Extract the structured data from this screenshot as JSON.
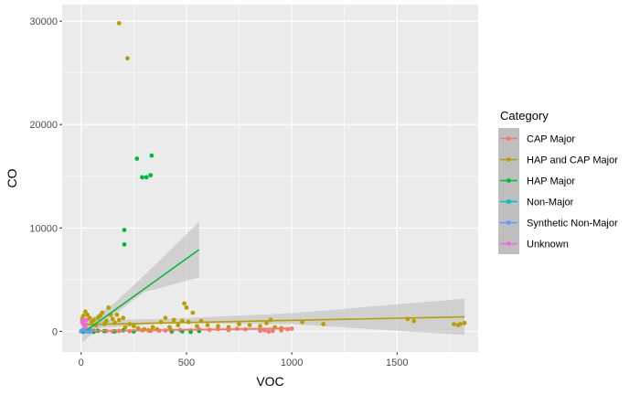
{
  "chart_data": {
    "type": "scatter",
    "xlabel": "VOC",
    "ylabel": "CO",
    "xlim": [
      -90,
      1885
    ],
    "ylim": [
      -2000,
      31600
    ],
    "xticks": [
      0,
      500,
      1000,
      1500
    ],
    "yticks": [
      0,
      10000,
      20000,
      30000
    ],
    "x_tick_labels": [
      "0",
      "500",
      "1000",
      "1500"
    ],
    "y_tick_labels": [
      "0",
      "10000",
      "20000",
      "30000"
    ],
    "grid": true,
    "legend": {
      "title": "Category",
      "position": "right",
      "entries": [
        "CAP Major",
        "HAP and CAP Major",
        "HAP Major",
        "Non-Major",
        "Synthetic Non-Major",
        "Unknown"
      ]
    },
    "colors": {
      "CAP Major": "#F8766D",
      "HAP and CAP Major": "#B79F00",
      "HAP Major": "#00BA38",
      "Non-Major": "#00BFC4",
      "Synthetic Non-Major": "#619CFF",
      "Unknown": "#F564E3",
      "panel_bg": "#EBEBEB",
      "grid": "#FFFFFF",
      "band": "#BEBEBE"
    },
    "series": [
      {
        "name": "CAP Major",
        "points": [
          [
            60,
            50
          ],
          [
            120,
            30
          ],
          [
            150,
            -20
          ],
          [
            180,
            40
          ],
          [
            230,
            20
          ],
          [
            290,
            100
          ],
          [
            330,
            40
          ],
          [
            370,
            60
          ],
          [
            400,
            80
          ],
          [
            430,
            -50
          ],
          [
            470,
            120
          ],
          [
            520,
            60
          ],
          [
            560,
            200
          ],
          [
            610,
            140
          ],
          [
            650,
            200
          ],
          [
            700,
            120
          ],
          [
            740,
            250
          ],
          [
            780,
            200
          ],
          [
            850,
            60
          ],
          [
            870,
            120
          ],
          [
            890,
            -20
          ],
          [
            910,
            40
          ],
          [
            950,
            100
          ],
          [
            980,
            200
          ],
          [
            1000,
            260
          ]
        ],
        "fit": [
          [
            40,
            30
          ],
          [
            1000,
            280
          ]
        ],
        "band": [
          [
            40,
            -90,
            150
          ],
          [
            1000,
            130,
            430
          ]
        ]
      },
      {
        "name": "HAP and CAP Major",
        "points": [
          [
            180,
            29800
          ],
          [
            220,
            26400
          ],
          [
            5,
            1200
          ],
          [
            10,
            1500
          ],
          [
            20,
            1900
          ],
          [
            30,
            1600
          ],
          [
            40,
            1300
          ],
          [
            50,
            900
          ],
          [
            60,
            1100
          ],
          [
            70,
            600
          ],
          [
            80,
            1300
          ],
          [
            90,
            1500
          ],
          [
            100,
            1800
          ],
          [
            110,
            700
          ],
          [
            120,
            1000
          ],
          [
            130,
            2300
          ],
          [
            140,
            1600
          ],
          [
            150,
            1200
          ],
          [
            160,
            800
          ],
          [
            170,
            1600
          ],
          [
            180,
            1100
          ],
          [
            200,
            1300
          ],
          [
            210,
            400
          ],
          [
            230,
            700
          ],
          [
            250,
            500
          ],
          [
            270,
            300
          ],
          [
            300,
            200
          ],
          [
            320,
            100
          ],
          [
            340,
            400
          ],
          [
            360,
            200
          ],
          [
            380,
            900
          ],
          [
            400,
            1300
          ],
          [
            420,
            400
          ],
          [
            440,
            1100
          ],
          [
            460,
            600
          ],
          [
            480,
            1000
          ],
          [
            490,
            2700
          ],
          [
            500,
            2300
          ],
          [
            510,
            900
          ],
          [
            530,
            1800
          ],
          [
            550,
            500
          ],
          [
            570,
            1000
          ],
          [
            600,
            600
          ],
          [
            650,
            500
          ],
          [
            700,
            400
          ],
          [
            750,
            700
          ],
          [
            800,
            600
          ],
          [
            850,
            500
          ],
          [
            880,
            800
          ],
          [
            900,
            1100
          ],
          [
            920,
            400
          ],
          [
            950,
            300
          ],
          [
            1050,
            900
          ],
          [
            1150,
            700
          ],
          [
            1550,
            1200
          ],
          [
            1580,
            1000
          ],
          [
            1770,
            700
          ],
          [
            1790,
            600
          ],
          [
            1800,
            700
          ],
          [
            1820,
            800
          ]
        ],
        "fit": [
          [
            5,
            650
          ],
          [
            1820,
            1400
          ]
        ],
        "band": [
          [
            5,
            200,
            1100
          ],
          [
            400,
            780,
            1200
          ],
          [
            1000,
            700,
            1750
          ],
          [
            1820,
            -350,
            3150
          ]
        ]
      },
      {
        "name": "HAP Major",
        "points": [
          [
            265,
            16700
          ],
          [
            335,
            17000
          ],
          [
            290,
            14900
          ],
          [
            310,
            14900
          ],
          [
            330,
            15100
          ],
          [
            205,
            9800
          ],
          [
            205,
            8400
          ],
          [
            10,
            100
          ],
          [
            30,
            0
          ],
          [
            60,
            -50
          ],
          [
            80,
            50
          ],
          [
            110,
            20
          ],
          [
            160,
            0
          ],
          [
            200,
            100
          ],
          [
            250,
            -20
          ],
          [
            430,
            50
          ],
          [
            480,
            0
          ],
          [
            520,
            -60
          ],
          [
            560,
            30
          ]
        ],
        "fit": [
          [
            5,
            -200
          ],
          [
            560,
            7900
          ]
        ],
        "band": [
          [
            5,
            -1100,
            700
          ],
          [
            150,
            1500,
            2600
          ],
          [
            300,
            3800,
            5400
          ],
          [
            560,
            5200,
            10600
          ]
        ]
      },
      {
        "name": "Non-Major",
        "points": [
          [
            5,
            40
          ],
          [
            10,
            80
          ],
          [
            15,
            0
          ],
          [
            20,
            120
          ],
          [
            30,
            60
          ],
          [
            40,
            -20
          ]
        ],
        "fit": [
          [
            0,
            30
          ],
          [
            45,
            90
          ]
        ],
        "band": [
          [
            0,
            -250,
            300
          ],
          [
            45,
            -150,
            350
          ]
        ]
      },
      {
        "name": "Synthetic Non-Major",
        "points": [
          [
            0,
            0
          ],
          [
            5,
            80
          ],
          [
            10,
            -40
          ],
          [
            20,
            40
          ],
          [
            30,
            0
          ],
          [
            50,
            60
          ]
        ],
        "fit": [
          [
            0,
            20
          ],
          [
            55,
            60
          ]
        ],
        "band": [
          [
            0,
            -200,
            240
          ],
          [
            55,
            -150,
            280
          ]
        ]
      },
      {
        "name": "Unknown",
        "points": [
          [
            5,
            900
          ],
          [
            10,
            1050
          ],
          [
            15,
            650
          ],
          [
            20,
            380
          ],
          [
            25,
            1100
          ]
        ],
        "fit": [
          [
            0,
            600
          ],
          [
            30,
            800
          ]
        ],
        "band": [
          [
            0,
            300,
            900
          ],
          [
            30,
            500,
            1100
          ]
        ]
      }
    ]
  }
}
